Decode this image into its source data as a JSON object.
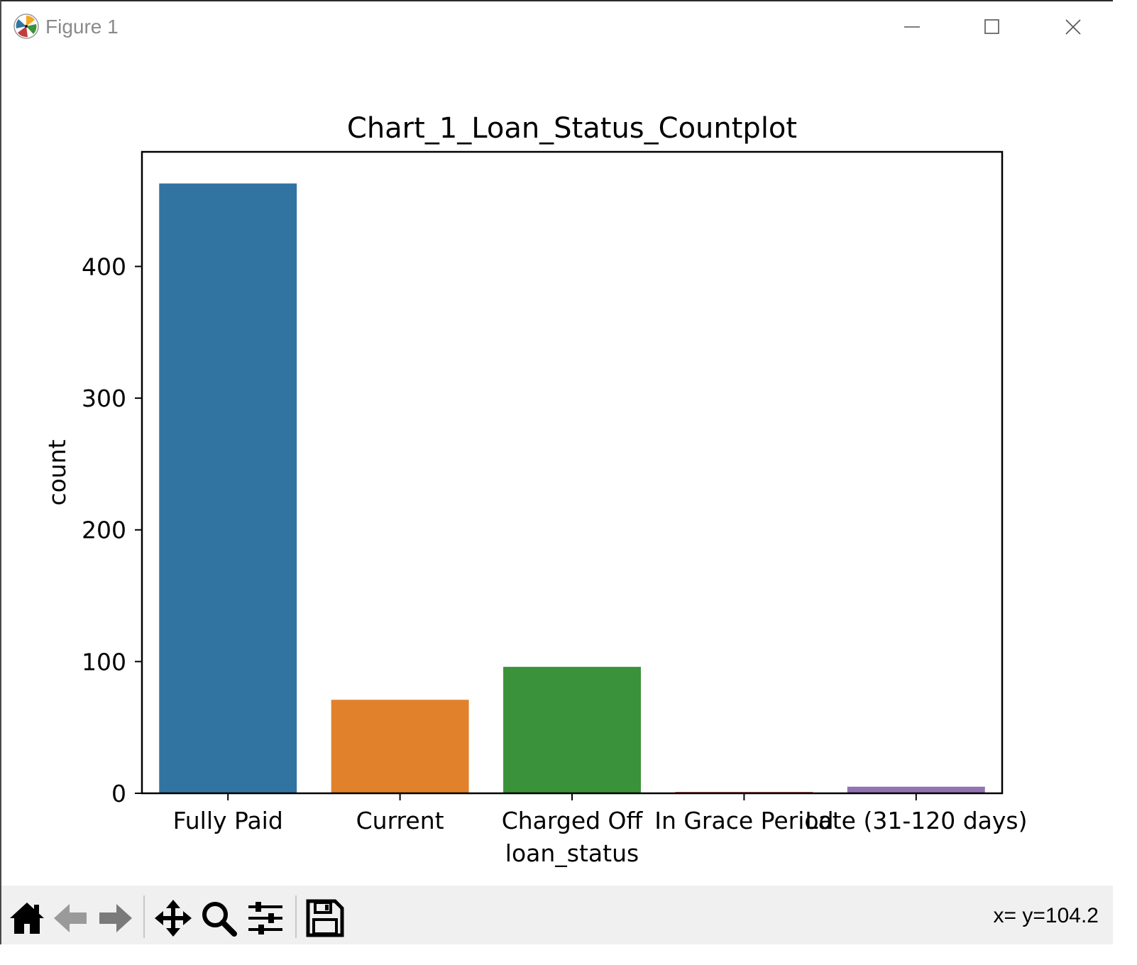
{
  "window": {
    "title": "Figure 1"
  },
  "toolbar": {
    "icons": [
      "home-icon",
      "back-arrow-icon",
      "forward-arrow-icon",
      "pan-icon",
      "zoom-icon",
      "configure-subplots-icon",
      "save-icon"
    ],
    "status": "x= y=104.2"
  },
  "chart_data": {
    "type": "bar",
    "title": "Chart_1_Loan_Status_Countplot",
    "xlabel": "loan_status",
    "ylabel": "count",
    "categories": [
      "Fully Paid",
      "Current",
      "Charged Off",
      "In Grace Period",
      "Late (31-120 days)"
    ],
    "values": [
      463,
      71,
      96,
      1,
      5
    ],
    "colors": [
      "#3274a1",
      "#e1812c",
      "#3a923a",
      "#c03d3e",
      "#9372b2"
    ],
    "ylim": [
      0,
      487
    ],
    "yticks": [
      0,
      100,
      200,
      300,
      400
    ],
    "grid": false
  }
}
